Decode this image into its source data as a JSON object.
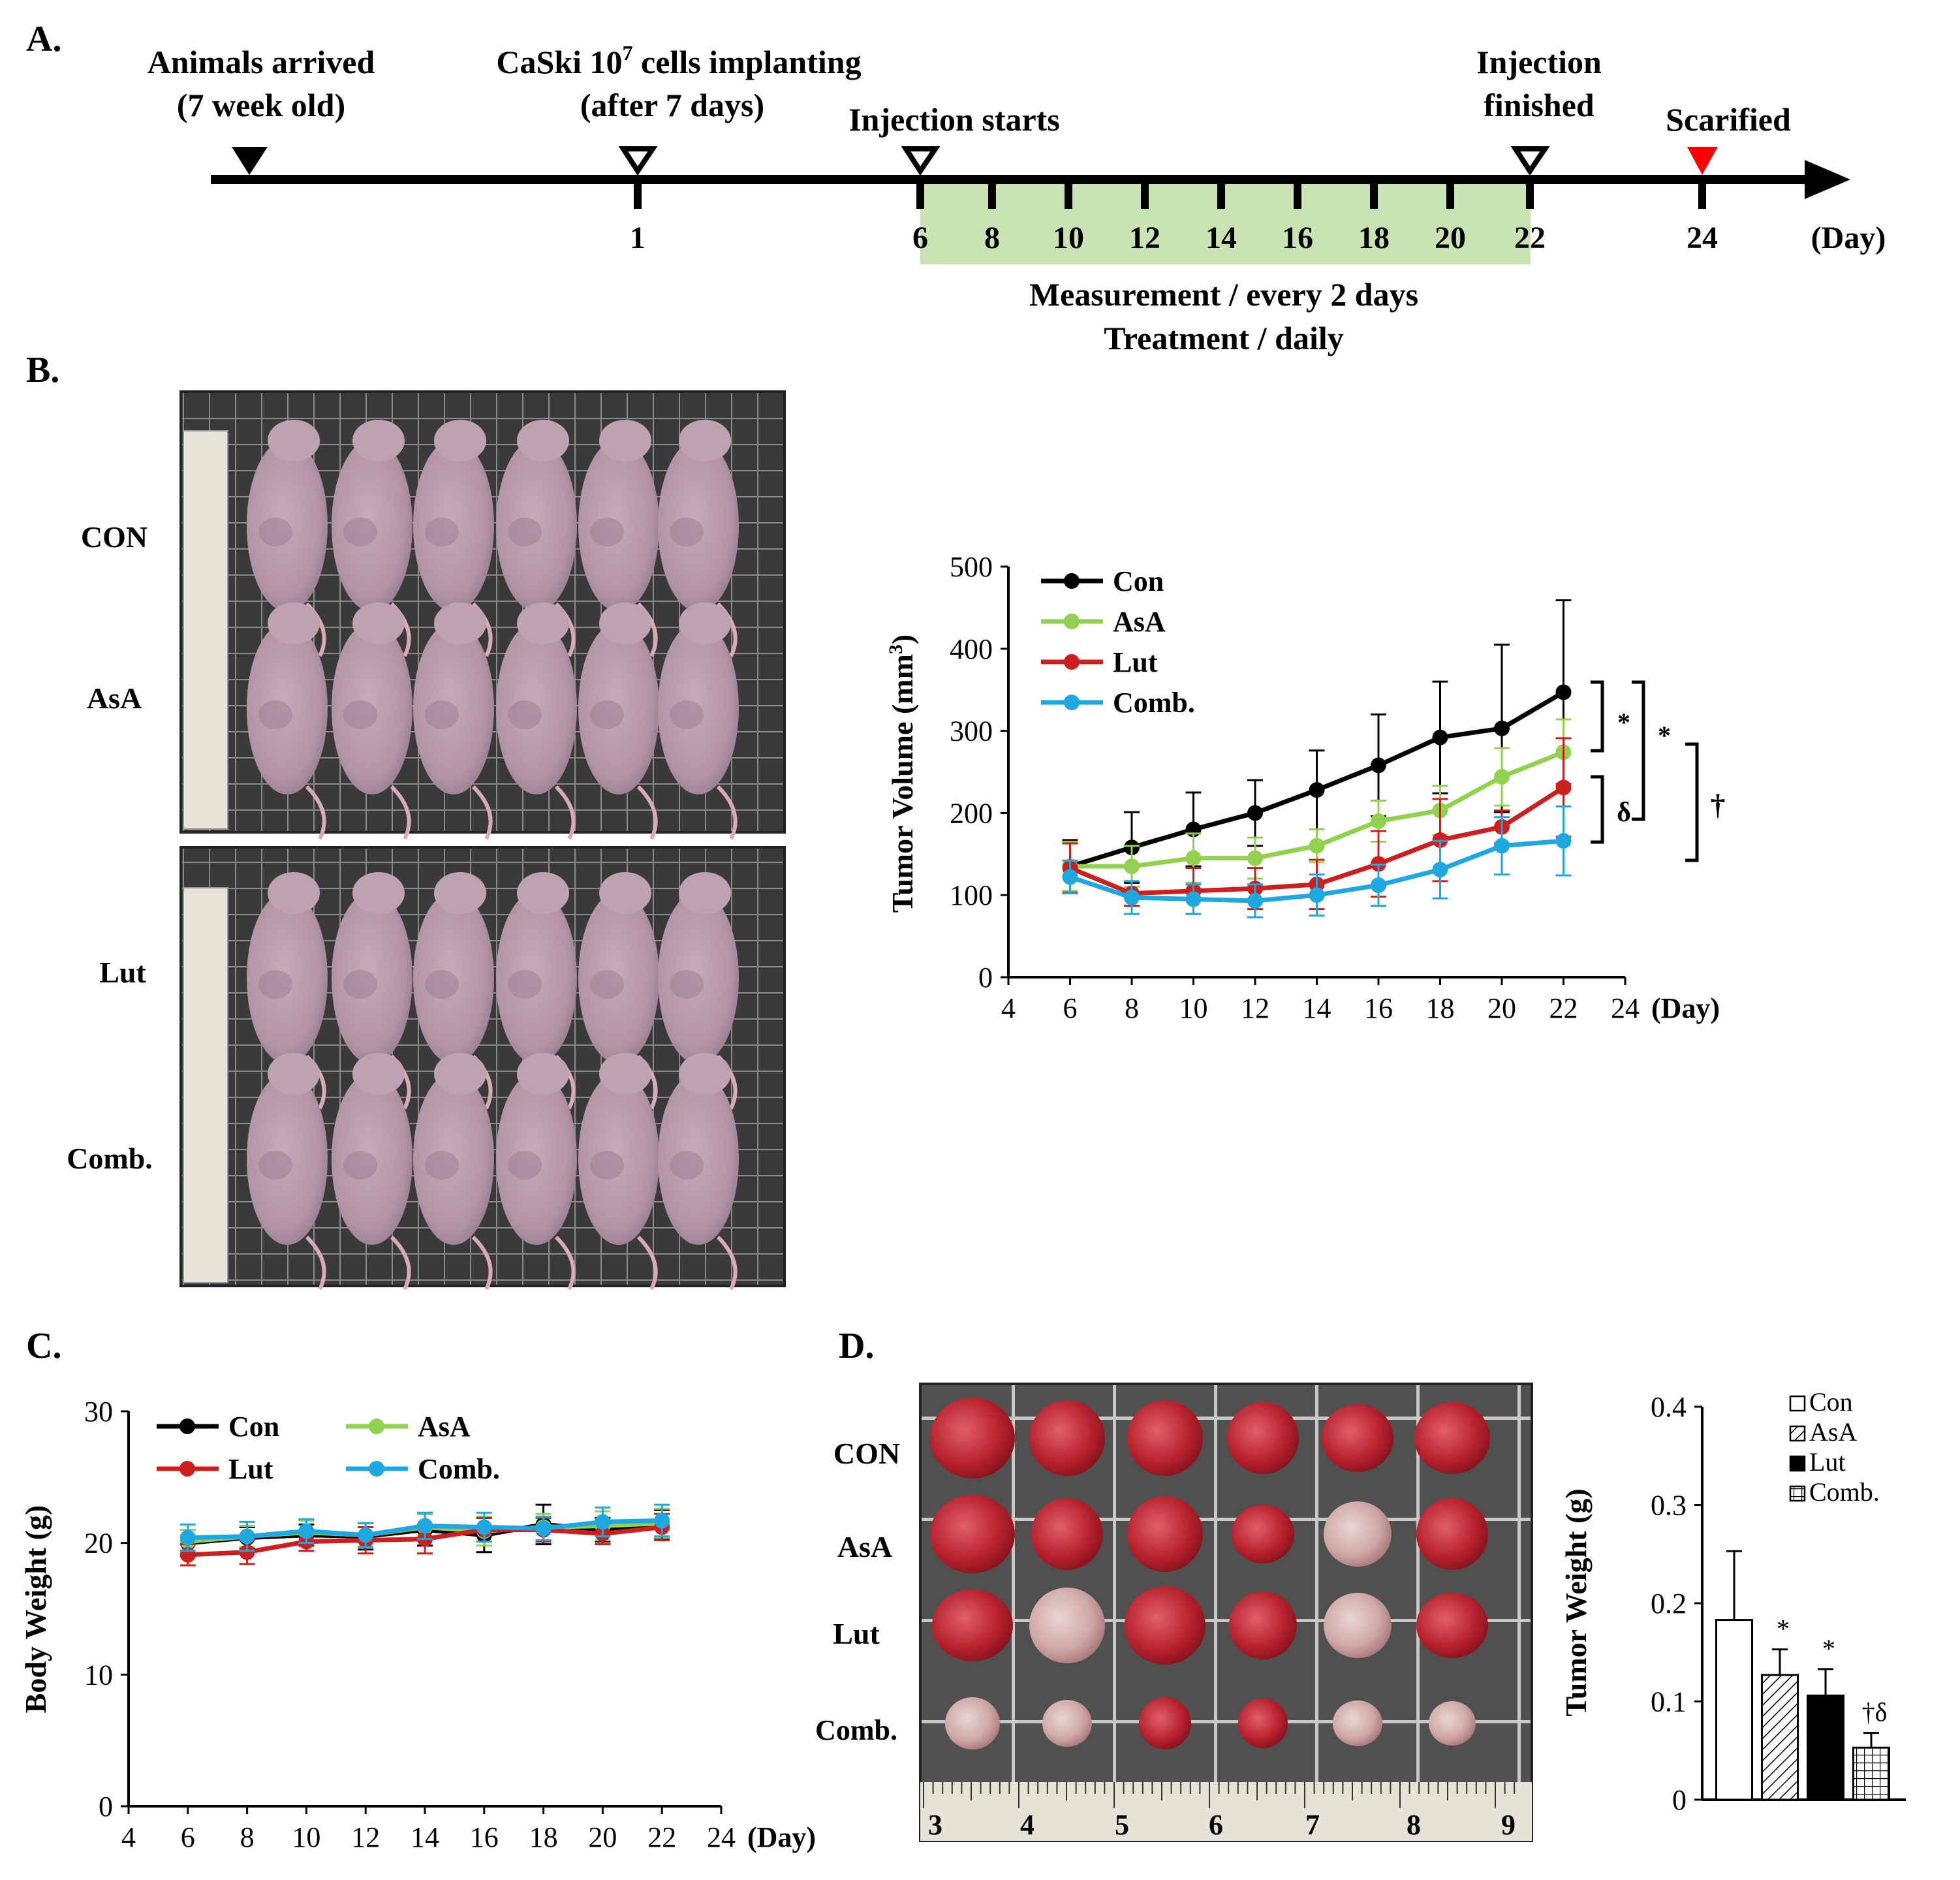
{
  "panel_labels": {
    "a": "A.",
    "b": "B.",
    "c": "C.",
    "d": "D."
  },
  "timeline": {
    "events": {
      "arrived": {
        "line1": "Animals arrived",
        "line2": "(7 week old)"
      },
      "implant_a": "CaSki 10",
      "implant_sup": "7",
      "implant_b": " cells implanting",
      "implant_line2": "(after 7 days)",
      "injection_start": "Injection starts",
      "injection_finish_1": "Injection",
      "injection_finish_2": "finished",
      "sacrificed": "Scarified"
    },
    "ticks": [
      "1",
      "6",
      "8",
      "10",
      "12",
      "14",
      "16",
      "18",
      "20",
      "22",
      "24"
    ],
    "unit": "(Day)",
    "notes": {
      "line1": "Measurement / every 2 days",
      "line2": "Treatment / daily"
    },
    "colors": {
      "arrow": "#000000",
      "sacrificed_marker": "#ff0000",
      "treatment_band": "#c9e3b4"
    }
  },
  "photo_b": {
    "row_labels": [
      "CON",
      "AsA",
      "Lut",
      "Comb."
    ]
  },
  "photo_d": {
    "row_labels": [
      "CON",
      "AsA",
      "Lut",
      "Comb."
    ],
    "ruler_numbers": [
      "3",
      "4",
      "5",
      "6",
      "7",
      "8",
      "9"
    ]
  },
  "chart_data": [
    {
      "id": "tumor_volume",
      "type": "line",
      "ylabel_main": "Tumor  Volume  (mm",
      "ylabel_sup": "3",
      "ylabel_end": ")",
      "xlabel": "(Day)",
      "x": [
        6,
        8,
        10,
        12,
        14,
        16,
        18,
        20,
        22
      ],
      "xlim": [
        4,
        24
      ],
      "xticks": [
        4,
        6,
        8,
        10,
        12,
        14,
        16,
        18,
        20,
        22,
        24
      ],
      "ylim": [
        0,
        500
      ],
      "yticks": [
        0,
        100,
        200,
        300,
        400,
        500
      ],
      "legend_position": "top-left",
      "series": [
        {
          "name": "Con",
          "color": "#000000",
          "values": [
            135,
            158,
            180,
            200,
            228,
            258,
            292,
            303,
            347
          ],
          "errors": [
            32,
            43,
            45,
            40,
            48,
            62,
            68,
            102,
            112
          ]
        },
        {
          "name": "AsA",
          "color": "#92d050",
          "values": [
            135,
            135,
            145,
            145,
            160,
            190,
            203,
            244,
            274
          ],
          "errors": [
            30,
            25,
            30,
            25,
            20,
            25,
            30,
            35,
            40
          ]
        },
        {
          "name": "Lut",
          "color": "#cc1f1f",
          "values": [
            133,
            102,
            105,
            108,
            113,
            138,
            167,
            183,
            231
          ],
          "errors": [
            30,
            15,
            28,
            25,
            30,
            40,
            50,
            20,
            60
          ]
        },
        {
          "name": "Comb.",
          "color": "#1fa7df",
          "values": [
            122,
            97,
            95,
            93,
            100,
            112,
            131,
            160,
            166
          ],
          "errors": [
            20,
            20,
            18,
            20,
            25,
            25,
            35,
            35,
            42
          ]
        }
      ],
      "annotations": [
        "*",
        "*",
        "δ",
        "†"
      ]
    },
    {
      "id": "body_weight",
      "type": "line",
      "ylabel": "Body  Weight (g)",
      "xlabel": "(Day)",
      "x": [
        6,
        8,
        10,
        12,
        14,
        16,
        18,
        20,
        22
      ],
      "xlim": [
        4,
        24
      ],
      "xticks": [
        4,
        6,
        8,
        10,
        12,
        14,
        16,
        18,
        20,
        22,
        24
      ],
      "ylim": [
        0,
        30
      ],
      "yticks": [
        0,
        10,
        20,
        30
      ],
      "legend_position": "top",
      "series": [
        {
          "name": "Con",
          "color": "#000000",
          "values": [
            20.0,
            20.4,
            20.6,
            20.5,
            21.0,
            20.6,
            21.4,
            21.0,
            21.4
          ],
          "errors": [
            1.0,
            0.8,
            0.8,
            1.0,
            1.2,
            1.3,
            1.5,
            0.9,
            1.1
          ]
        },
        {
          "name": "AsA",
          "color": "#92d050",
          "values": [
            20.1,
            20.5,
            20.8,
            20.6,
            21.2,
            20.9,
            21.2,
            21.3,
            21.5
          ],
          "errors": [
            0.9,
            0.8,
            0.9,
            0.9,
            1.0,
            1.1,
            1.0,
            1.1,
            1.1
          ]
        },
        {
          "name": "Lut",
          "color": "#cc1f1f",
          "values": [
            19.1,
            19.3,
            20.1,
            20.2,
            20.3,
            21.0,
            21.0,
            20.7,
            21.2
          ],
          "errors": [
            0.8,
            0.9,
            0.7,
            1.0,
            1.1,
            0.9,
            0.9,
            0.8,
            1.0
          ]
        },
        {
          "name": "Comb.",
          "color": "#1fa7df",
          "values": [
            20.4,
            20.5,
            20.9,
            20.6,
            21.3,
            21.2,
            21.1,
            21.6,
            21.7
          ],
          "errors": [
            1.0,
            1.1,
            0.9,
            0.9,
            1.0,
            1.1,
            0.9,
            1.1,
            1.2
          ]
        }
      ]
    },
    {
      "id": "tumor_weight",
      "type": "bar",
      "ylabel": "Tumor  Weight (g)",
      "categories": [
        "Con",
        "AsA",
        "Lut",
        "Comb."
      ],
      "values": [
        0.183,
        0.127,
        0.106,
        0.053
      ],
      "errors": [
        0.07,
        0.026,
        0.027,
        0.015
      ],
      "annotations": [
        "",
        "*",
        "*",
        "†δ"
      ],
      "ylim": [
        0,
        0.4
      ],
      "yticks": [
        "0",
        "0.1",
        "0.2",
        "0.3",
        "0.4"
      ],
      "fills": [
        "white",
        "hatch",
        "black",
        "grid"
      ],
      "legend_position": "top-right"
    }
  ]
}
